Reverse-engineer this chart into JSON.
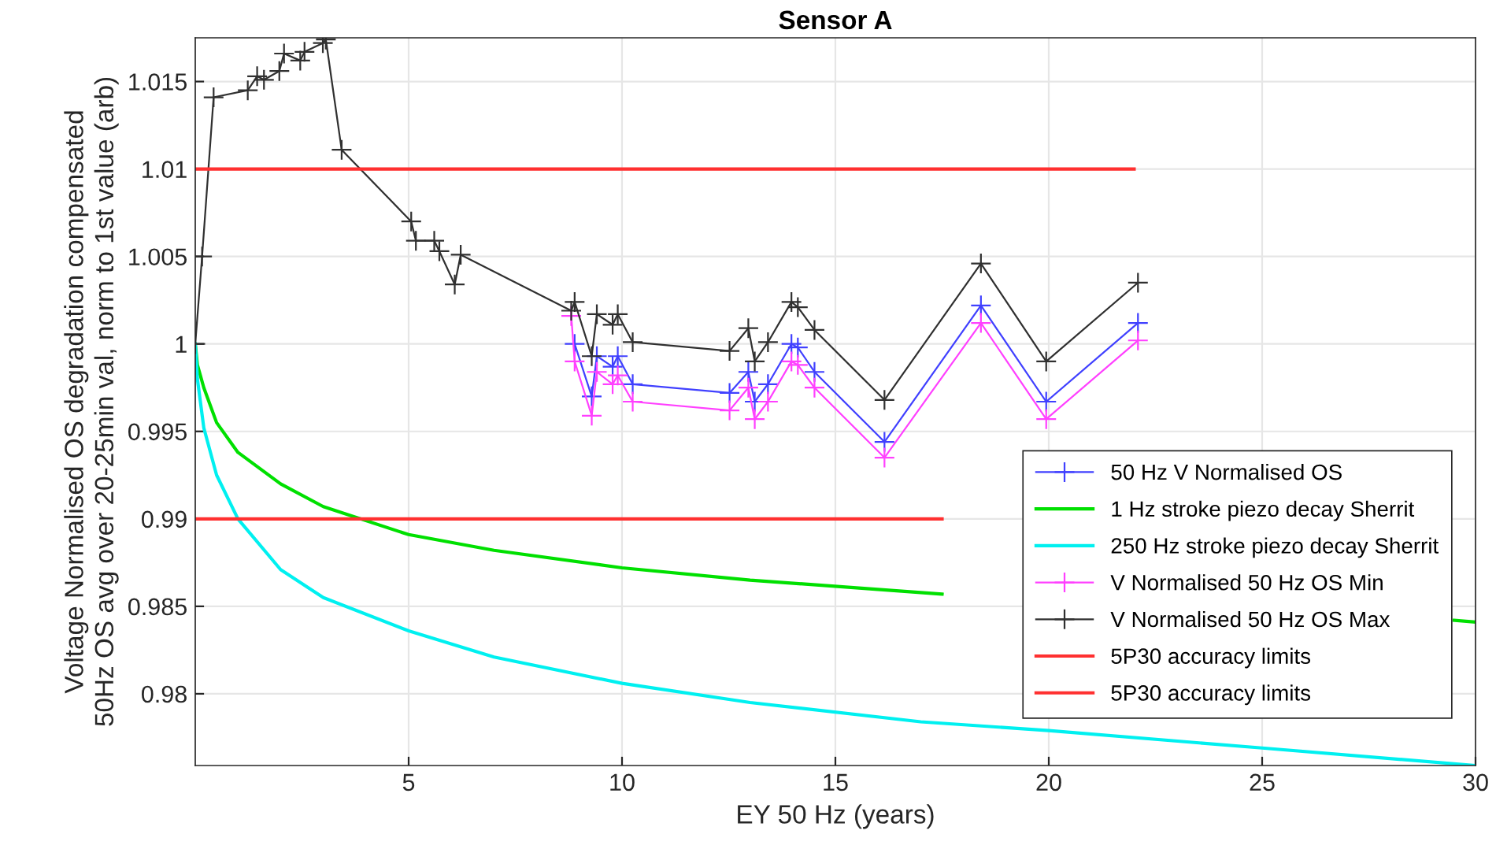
{
  "chart_data": {
    "type": "line",
    "title": "Sensor A",
    "xlabel": "EY 50 Hz (years)",
    "ylabel": "Voltage Normalised OS degradation compensated\n50Hz OS avg over 20-25min val, norm to 1st value (arb)",
    "xlim": [
      0,
      30
    ],
    "xticks": [
      5,
      10,
      15,
      20,
      25,
      30
    ],
    "ylim": [
      0.9759,
      1.0175
    ],
    "yticks": [
      0.98,
      0.985,
      0.99,
      0.995,
      1,
      1.005,
      1.01,
      1.015
    ],
    "grid": true,
    "legend": "bottom right",
    "series": [
      {
        "name": "50 Hz V Normalised OS",
        "color": "#4040ff",
        "marker": "cross",
        "x": [
          8.89,
          9.29,
          9.41,
          9.78,
          9.9,
          10.25,
          12.52,
          12.96,
          13.11,
          13.42,
          13.97,
          14.12,
          14.51,
          16.15,
          18.41,
          19.94,
          22.09
        ],
        "values": [
          1.0,
          0.997,
          0.9993,
          0.9987,
          0.9993,
          0.9977,
          0.9972,
          0.9984,
          0.9967,
          0.9977,
          1.0,
          0.9998,
          0.9984,
          0.9944,
          1.0022,
          0.9967,
          1.0012
        ]
      },
      {
        "name": "1 Hz stroke piezo decay Sherrit",
        "color": "#00e000",
        "marker": "none",
        "x": [
          0,
          0.05,
          0.2,
          0.5,
          1,
          2,
          3,
          5,
          7,
          10,
          13,
          17.5,
          18,
          29.5,
          30
        ],
        "values": [
          1.0,
          0.9988,
          0.9975,
          0.9955,
          0.9938,
          0.992,
          0.9907,
          0.9891,
          0.9882,
          0.9872,
          0.9865,
          0.9857,
          null,
          0.9842,
          0.9841
        ]
      },
      {
        "name": "250 Hz stroke piezo decay Sherrit",
        "color": "#00f0f0",
        "marker": "none",
        "x": [
          0,
          0.05,
          0.2,
          0.5,
          1,
          2,
          3,
          5,
          7,
          10,
          13,
          17,
          20,
          25,
          30
        ],
        "values": [
          1.0,
          0.998,
          0.9952,
          0.9925,
          0.99,
          0.9871,
          0.9855,
          0.9836,
          0.9821,
          0.9806,
          0.9795,
          0.9784,
          0.9779,
          0.9769,
          0.9759
        ]
      },
      {
        "name": "V Normalised 50 Hz OS Min",
        "color": "#ff40ff",
        "marker": "cross",
        "x": [
          8.81,
          8.89,
          9.29,
          9.41,
          9.78,
          9.9,
          10.25,
          12.52,
          12.96,
          13.11,
          13.42,
          13.97,
          14.12,
          14.51,
          16.15,
          18.41,
          19.94,
          22.09
        ],
        "values": [
          1.0016,
          0.999,
          0.9959,
          0.9984,
          0.9977,
          0.9982,
          0.9967,
          0.9962,
          0.9975,
          0.9957,
          0.9967,
          0.999,
          0.9988,
          0.9975,
          0.9935,
          1.0012,
          0.9957,
          1.0002
        ]
      },
      {
        "name": "V Normalised 50 Hz OS Max",
        "color": "#303030",
        "marker": "cross",
        "x": [
          0,
          0.16,
          0.43,
          1.23,
          1.45,
          1.61,
          1.97,
          2.08,
          2.46,
          2.56,
          2.99,
          3.06,
          3.43,
          5.06,
          5.17,
          5.6,
          5.72,
          6.08,
          6.22,
          8.81,
          8.89,
          9.29,
          9.41,
          9.78,
          9.9,
          10.25,
          12.52,
          12.96,
          13.11,
          13.42,
          13.97,
          14.12,
          14.51,
          16.15,
          18.41,
          19.94,
          22.09
        ],
        "values": [
          1.0,
          1.005,
          1.0141,
          1.0145,
          1.0153,
          1.0151,
          1.0156,
          1.0166,
          1.0162,
          1.0167,
          1.0172,
          1.0174,
          1.0111,
          1.007,
          1.0059,
          1.0059,
          1.0053,
          1.0034,
          1.0051,
          1.0019,
          1.0024,
          0.9993,
          1.0017,
          1.0011,
          1.0017,
          1.0001,
          0.9996,
          1.0009,
          0.999,
          1.0001,
          1.0024,
          1.0021,
          1.0008,
          0.9968,
          1.0046,
          0.999,
          1.0035
        ]
      },
      {
        "name": "5P30 accuracy limits",
        "color": "#ff3030",
        "marker": "none",
        "x": [
          0,
          22
        ],
        "values": [
          1.01,
          1.01
        ]
      },
      {
        "name": "5P30 accuracy limits",
        "color": "#ff3030",
        "marker": "none",
        "x": [
          0,
          17.5
        ],
        "values": [
          0.99,
          0.99
        ]
      }
    ]
  }
}
